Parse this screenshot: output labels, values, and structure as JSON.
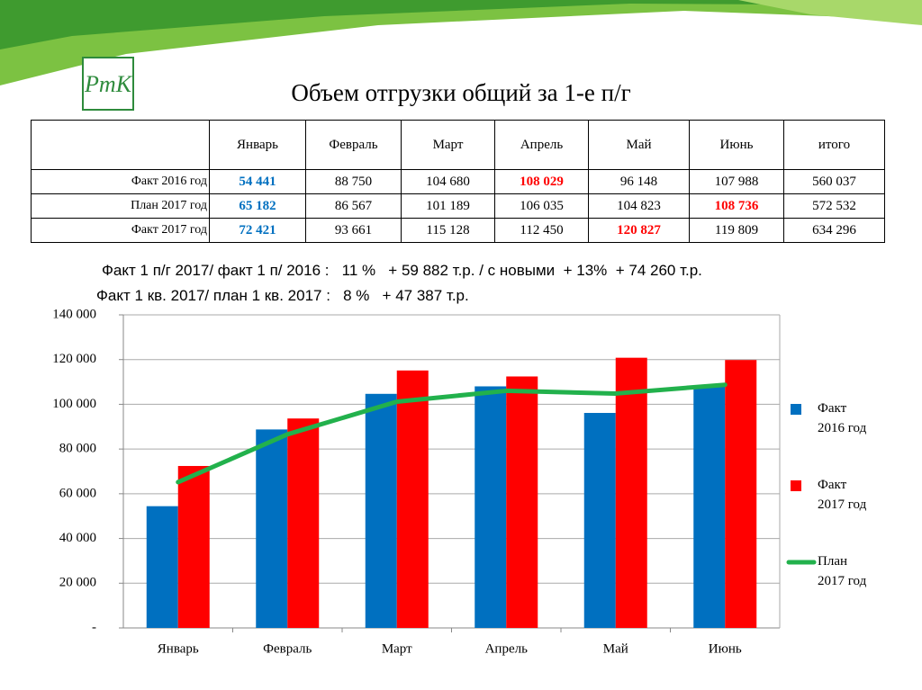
{
  "logo": "РтК",
  "title": "Объем отгрузки общий за 1-е п/г",
  "table": {
    "header": [
      "Январь",
      "Февраль",
      "Март",
      "Апрель",
      "Май",
      "Июнь",
      "итого"
    ],
    "rows": [
      [
        "Факт 2016 год",
        "54 441",
        "88 750",
        "104 680",
        "108 029",
        "96 148",
        "107 988",
        "560 037"
      ],
      [
        "План 2017 год",
        "65 182",
        "86 567",
        "101 189",
        "106 035",
        "104 823",
        "108 736",
        "572 532"
      ],
      [
        "Факт 2017 год",
        "72 421",
        "93 661",
        "115 128",
        "112 450",
        "120 827",
        "119 809",
        "634 296"
      ]
    ]
  },
  "notes": [
    "Факт 1 п/г 2017/ факт 1 п/ 2016 :   11 %   + 59 882 т.р. / с новыми  + 13%  + 74 260 т.р.",
    "Факт 1 кв. 2017/ план 1 кв. 2017 :   8 %   + 47 387 т.р."
  ],
  "chart_data": {
    "type": "bar",
    "categories": [
      "Январь",
      "Февраль",
      "Март",
      "Апрель",
      "Май",
      "Июнь"
    ],
    "series": [
      {
        "name": "Факт 2016 год",
        "color": "#0070c0",
        "type": "bar",
        "values": [
          54441,
          88750,
          104680,
          108029,
          96148,
          107988
        ]
      },
      {
        "name": "Факт 2017 год",
        "color": "#ff0000",
        "type": "bar",
        "values": [
          72421,
          93661,
          115128,
          112450,
          120827,
          119809
        ]
      },
      {
        "name": "План 2017 год",
        "color": "#22b14c",
        "type": "line",
        "values": [
          65182,
          86567,
          101189,
          106035,
          104823,
          108736
        ]
      }
    ],
    "ylim": [
      0,
      140000
    ],
    "yticks": [
      {
        "value": 0,
        "label": "-"
      },
      {
        "value": 20000,
        "label": "20 000"
      },
      {
        "value": 40000,
        "label": "40 000"
      },
      {
        "value": 60000,
        "label": "60 000"
      },
      {
        "value": 80000,
        "label": "80 000"
      },
      {
        "value": 100000,
        "label": "100 000"
      },
      {
        "value": 120000,
        "label": "120 000"
      },
      {
        "value": 140000,
        "label": "140 000"
      }
    ],
    "grid": true,
    "legend": "right"
  }
}
